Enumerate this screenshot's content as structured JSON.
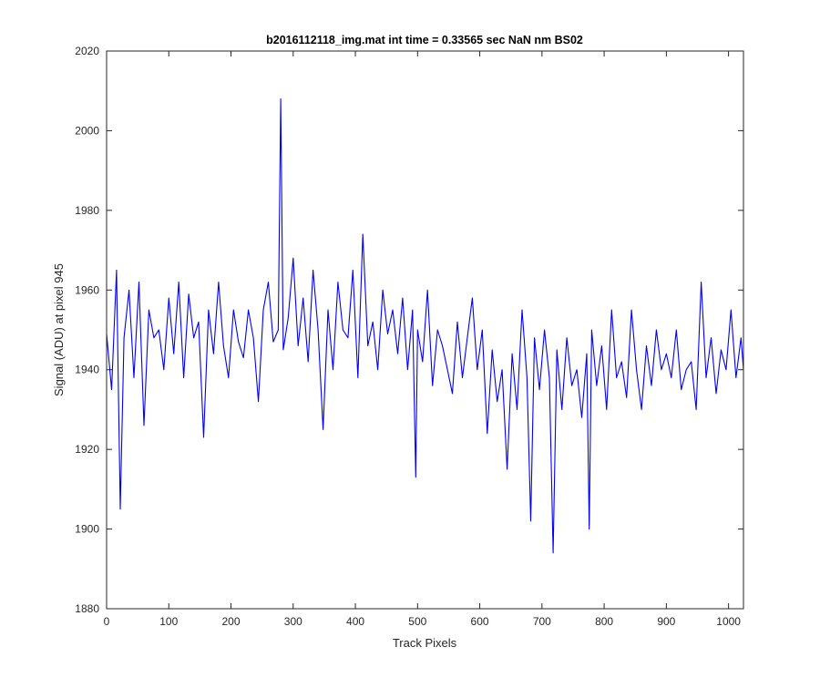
{
  "chart_data": {
    "type": "line",
    "title": "b2016112118_img.mat int time = 0.33565 sec  NaN nm BS02",
    "xlabel": "Track Pixels",
    "ylabel": "Signal (ADU) at pixel 945",
    "xlim": [
      0,
      1024
    ],
    "ylim": [
      1880,
      2020
    ],
    "xticks": [
      0,
      100,
      200,
      300,
      400,
      500,
      600,
      700,
      800,
      900,
      1000
    ],
    "yticks": [
      1880,
      1900,
      1920,
      1940,
      1960,
      1980,
      2000,
      2020
    ],
    "grid": false,
    "legend": "none",
    "series": [
      {
        "color": "#0000ff",
        "x": [
          0,
          8,
          16,
          22,
          28,
          36,
          44,
          52,
          60,
          68,
          76,
          84,
          92,
          100,
          108,
          116,
          124,
          132,
          140,
          148,
          156,
          164,
          172,
          180,
          188,
          196,
          204,
          212,
          220,
          228,
          236,
          244,
          252,
          260,
          268,
          276,
          280,
          284,
          292,
          300,
          308,
          316,
          324,
          332,
          340,
          348,
          356,
          364,
          372,
          380,
          388,
          396,
          404,
          412,
          420,
          428,
          436,
          444,
          452,
          460,
          468,
          476,
          484,
          492,
          497,
          500,
          508,
          516,
          524,
          532,
          540,
          548,
          556,
          564,
          572,
          580,
          588,
          596,
          604,
          612,
          620,
          628,
          636,
          644,
          652,
          660,
          668,
          676,
          682,
          688,
          696,
          704,
          712,
          718,
          724,
          732,
          740,
          748,
          756,
          764,
          772,
          776,
          780,
          788,
          796,
          804,
          812,
          820,
          828,
          836,
          844,
          852,
          860,
          868,
          876,
          884,
          892,
          900,
          908,
          916,
          924,
          932,
          940,
          948,
          956,
          964,
          972,
          980,
          988,
          996,
          1004,
          1012,
          1020,
          1024
        ],
        "y": [
          1949,
          1935,
          1965,
          1905,
          1948,
          1960,
          1938,
          1962,
          1926,
          1955,
          1948,
          1950,
          1940,
          1958,
          1944,
          1962,
          1938,
          1959,
          1948,
          1952,
          1923,
          1955,
          1944,
          1962,
          1946,
          1938,
          1955,
          1947,
          1943,
          1955,
          1948,
          1932,
          1955,
          1962,
          1947,
          1950,
          2008,
          1945,
          1953,
          1968,
          1946,
          1958,
          1942,
          1965,
          1950,
          1925,
          1955,
          1940,
          1962,
          1950,
          1948,
          1965,
          1938,
          1974,
          1946,
          1952,
          1940,
          1960,
          1949,
          1955,
          1944,
          1958,
          1940,
          1955,
          1913,
          1950,
          1942,
          1960,
          1936,
          1950,
          1946,
          1940,
          1934,
          1952,
          1938,
          1948,
          1958,
          1940,
          1950,
          1924,
          1945,
          1932,
          1940,
          1915,
          1944,
          1930,
          1955,
          1938,
          1902,
          1948,
          1935,
          1950,
          1938,
          1894,
          1945,
          1930,
          1948,
          1936,
          1940,
          1928,
          1944,
          1900,
          1950,
          1936,
          1946,
          1930,
          1955,
          1938,
          1942,
          1933,
          1955,
          1940,
          1930,
          1946,
          1936,
          1950,
          1940,
          1944,
          1938,
          1950,
          1935,
          1940,
          1942,
          1930,
          1962,
          1938,
          1948,
          1934,
          1945,
          1940,
          1955,
          1938,
          1948,
          1940
        ]
      }
    ]
  }
}
